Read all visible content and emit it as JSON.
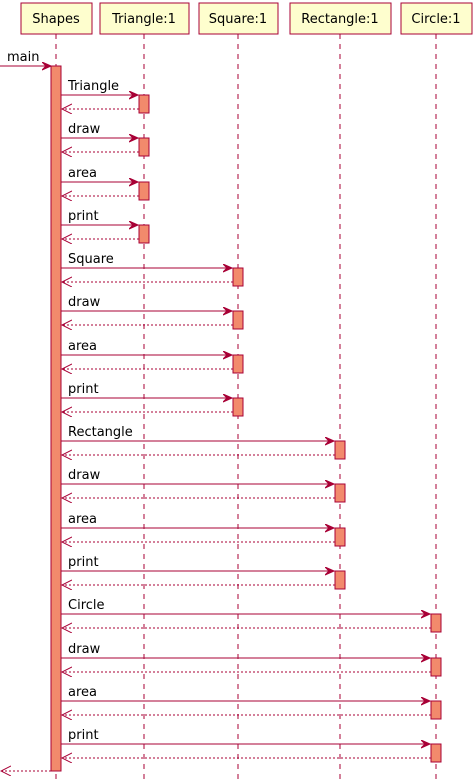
{
  "colors": {
    "participant_fill": "#fefece",
    "border": "#a80036",
    "activation_fill": "#f28a6c",
    "text": "#000000",
    "background": "#ffffff"
  },
  "participants": [
    {
      "id": "shapes",
      "label": "Shapes"
    },
    {
      "id": "triangle",
      "label": "Triangle:1"
    },
    {
      "id": "square",
      "label": "Square:1"
    },
    {
      "id": "rectangle",
      "label": "Rectangle:1"
    },
    {
      "id": "circle",
      "label": "Circle:1"
    }
  ],
  "entry": {
    "label": "main"
  },
  "messages": [
    {
      "target": "triangle",
      "label": "Triangle"
    },
    {
      "target": "triangle",
      "label": "draw"
    },
    {
      "target": "triangle",
      "label": "area"
    },
    {
      "target": "triangle",
      "label": "print"
    },
    {
      "target": "square",
      "label": "Square"
    },
    {
      "target": "square",
      "label": "draw"
    },
    {
      "target": "square",
      "label": "area"
    },
    {
      "target": "square",
      "label": "print"
    },
    {
      "target": "rectangle",
      "label": "Rectangle"
    },
    {
      "target": "rectangle",
      "label": "draw"
    },
    {
      "target": "rectangle",
      "label": "area"
    },
    {
      "target": "rectangle",
      "label": "print"
    },
    {
      "target": "circle",
      "label": "Circle"
    },
    {
      "target": "circle",
      "label": "draw"
    },
    {
      "target": "circle",
      "label": "area"
    },
    {
      "target": "circle",
      "label": "print"
    }
  ]
}
